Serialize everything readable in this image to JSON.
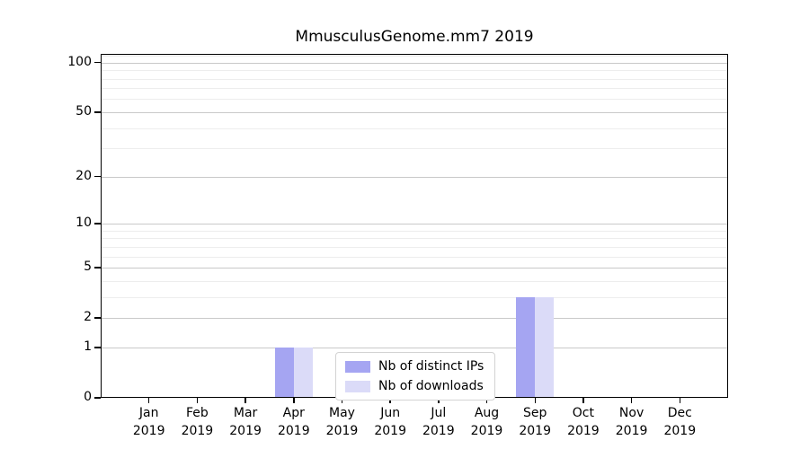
{
  "chart_data": {
    "type": "bar",
    "title": "MmusculusGenome.mm7 2019",
    "categories": [
      "Jan",
      "Feb",
      "Mar",
      "Apr",
      "May",
      "Jun",
      "Jul",
      "Aug",
      "Sep",
      "Oct",
      "Nov",
      "Dec"
    ],
    "year": "2019",
    "series": [
      {
        "name": "Nb of distinct IPs",
        "color": "#a5a5f2",
        "values": [
          0,
          0,
          0,
          1,
          0,
          0,
          0,
          0,
          3,
          0,
          0,
          0
        ]
      },
      {
        "name": "Nb of downloads",
        "color": "#dbdbf8",
        "values": [
          0,
          0,
          0,
          1,
          0,
          0,
          0,
          0,
          3,
          0,
          0,
          0
        ]
      }
    ],
    "y_scale": "log1p",
    "y_ticks": [
      0,
      1,
      2,
      5,
      10,
      20,
      50,
      100
    ],
    "y_minor_gridlines": [
      3,
      4,
      6,
      7,
      8,
      9,
      30,
      40,
      60,
      70,
      80,
      90,
      110
    ],
    "ylim": [
      0,
      113
    ],
    "xlabel": "",
    "ylabel": "",
    "grid": true,
    "legend_position": "lower center",
    "colors": {
      "grid_major": "#c9c9c9",
      "grid_minor": "#ededed",
      "spine": "#000000",
      "background": "#ffffff"
    }
  }
}
